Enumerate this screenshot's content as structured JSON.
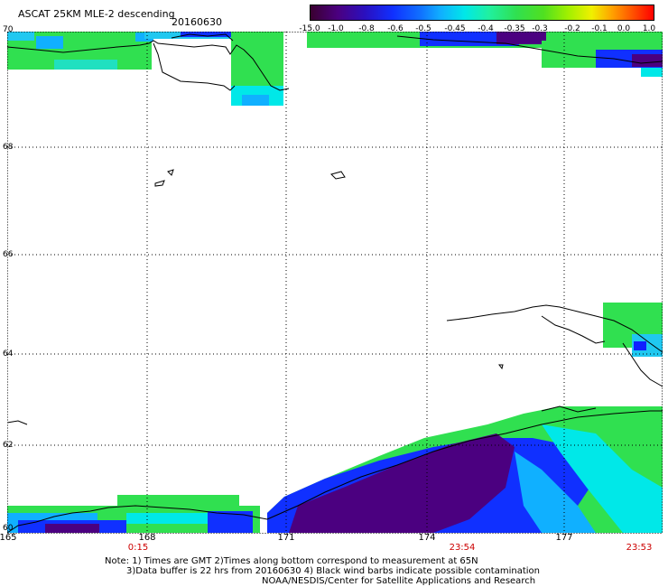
{
  "header": {
    "title": "ASCAT 25KM MLE-2 descending",
    "date": "20160630"
  },
  "colorbar": {
    "ticks": [
      "-15.0",
      "-1.0",
      "-0.8",
      "-0.6",
      "-0.5",
      "-0.45",
      "-0.4",
      "-0.35",
      "-0.3",
      "-0.2",
      "-0.1",
      "0.0",
      "1.0"
    ]
  },
  "map": {
    "latitudes": [
      "70",
      "68",
      "66",
      "64",
      "62",
      "60"
    ],
    "longitudes": [
      "165",
      "168",
      "171",
      "174",
      "177"
    ],
    "times": [
      "0:15",
      "23:54",
      "23:53"
    ]
  },
  "footer": {
    "note_line1": "Note: 1) Times are GMT 2)Times along bottom correspond to measurement at 65N",
    "note_line2": "3)Data buffer is 22 hrs from 20160630 4) Black wind barbs indicate possible contamination",
    "credit": "NOAA/NESDIS/Center for Satellite Applications and Research"
  },
  "colors": {
    "purple": "#4b0090",
    "blue": "#1020ff",
    "cyan": "#00e8f0",
    "green": "#30e040"
  }
}
